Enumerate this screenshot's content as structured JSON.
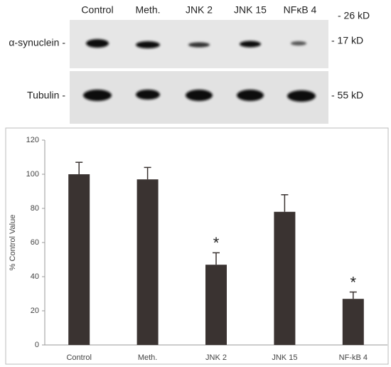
{
  "blot": {
    "lanes": [
      "Control",
      "Meth.",
      "JNK 2",
      "JNK 15",
      "NFκB 4"
    ],
    "rows": [
      "α-synuclein -",
      "Tubulin -"
    ],
    "markers": [
      "- 26 kD",
      "- 17 kD",
      "- 55 kD"
    ]
  },
  "chart_data": {
    "type": "bar",
    "y_label": "% Control Value",
    "categories": [
      "Control",
      "Meth.",
      "JNK 2",
      "JNK 15",
      "NF-kB 4"
    ],
    "values": [
      100,
      97,
      47,
      78,
      27
    ],
    "errors": [
      7,
      7,
      7,
      10,
      4
    ],
    "color": "#3a3331",
    "ylim": [
      0,
      120
    ],
    "yticks": [
      0,
      20,
      40,
      60,
      80,
      100,
      120
    ],
    "annotations": [
      {
        "text": "*",
        "x": "JNK 2"
      },
      {
        "text": "*",
        "x": "NF-kB 4"
      }
    ]
  }
}
